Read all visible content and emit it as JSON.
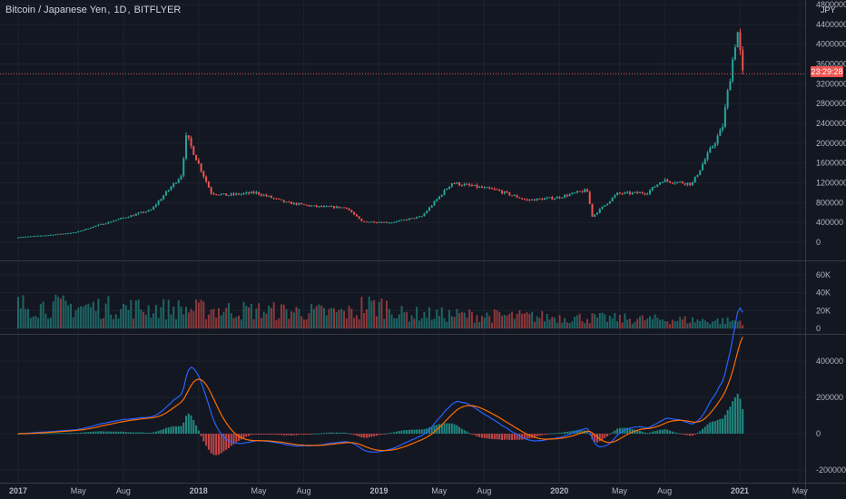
{
  "header": {
    "symbol": "Bitcoin / Japanese Yen",
    "interval": "1D",
    "exchange": "BITFLYER",
    "currency": "JPY",
    "last_price_countdown": "23:29:28"
  },
  "colors": {
    "background": "#131722",
    "grid": "#1e222d",
    "up": "#26a69a",
    "down": "#ef5350",
    "text": "#b2b5be",
    "macd_line": "#2962ff",
    "signal_line": "#ff6d00"
  },
  "chart_data": [
    {
      "type": "line",
      "name": "price",
      "y_ticks": [
        "0",
        "400000",
        "800000",
        "1200000",
        "1600000",
        "2000000",
        "2400000",
        "2800000",
        "3200000",
        "3600000",
        "4000000",
        "4400000",
        "4800000"
      ],
      "ylim": [
        0,
        4800000
      ],
      "x": [
        "2017-01",
        "2017-03",
        "2017-05",
        "2017-06",
        "2017-08",
        "2017-10",
        "2017-12",
        "2017-12",
        "2018-01",
        "2018-02",
        "2018-03",
        "2018-05",
        "2018-07",
        "2018-09",
        "2018-11",
        "2018-12",
        "2019-02",
        "2019-04",
        "2019-06",
        "2019-07",
        "2019-09",
        "2019-11",
        "2020-01",
        "2020-03",
        "2020-03",
        "2020-05",
        "2020-07",
        "2020-08",
        "2020-10",
        "2020-11",
        "2020-12",
        "2021-01",
        "2021-01"
      ],
      "values": [
        100000,
        140000,
        200000,
        300000,
        480000,
        650000,
        1350000,
        2150000,
        1700000,
        1000000,
        950000,
        1000000,
        800000,
        720000,
        700000,
        420000,
        400000,
        520000,
        1200000,
        1150000,
        1050000,
        850000,
        900000,
        1050000,
        520000,
        980000,
        1000000,
        1250000,
        1180000,
        1750000,
        2300000,
        4300000,
        3400000
      ]
    },
    {
      "type": "bar",
      "name": "volume",
      "y_ticks": [
        "0",
        "20K",
        "40K",
        "60K"
      ],
      "ylim": [
        0,
        70000
      ]
    },
    {
      "type": "line",
      "name": "MACD",
      "y_ticks": [
        "-200000",
        "0",
        "200000",
        "400000"
      ],
      "ylim": [
        -230000,
        500000
      ],
      "x_labels": [
        "2017",
        "May",
        "Aug",
        "2018",
        "May",
        "Aug",
        "2019",
        "May",
        "Aug",
        "2020",
        "May",
        "Aug",
        "2021",
        "May"
      ]
    }
  ]
}
